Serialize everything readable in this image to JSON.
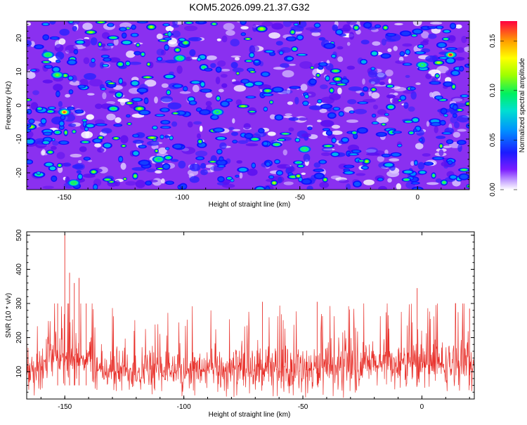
{
  "title": "KOM5.2026.099.21.37.G32",
  "chart_data": [
    {
      "type": "heatmap",
      "xlabel": "Height of straight line (km)",
      "ylabel": "Frequency (Hz)",
      "xlim": [
        -166,
        22
      ],
      "ylim": [
        -25,
        25
      ],
      "xticks": [
        -150,
        -100,
        -50,
        0
      ],
      "yticks": [
        -20,
        -10,
        0,
        10,
        20
      ],
      "colorbar": {
        "label": "Normalized spectral amplitude",
        "range": [
          0.0,
          0.17
        ],
        "ticks": [
          0.0,
          0.05,
          0.1,
          0.15
        ],
        "tick_labels": [
          "0.00",
          "0.05",
          "0.10",
          "0.15"
        ]
      },
      "hotspots": [
        {
          "x": -150,
          "y": -2,
          "v": 0.16
        },
        {
          "x": 14,
          "y": 15,
          "v": 0.17
        },
        {
          "x": -153,
          "y": 9,
          "v": 0.11
        },
        {
          "x": -157,
          "y": 15,
          "v": 0.09
        },
        {
          "x": -146,
          "y": -23,
          "v": 0.09
        },
        {
          "x": -101,
          "y": 14,
          "v": 0.08
        },
        {
          "x": 2,
          "y": 12,
          "v": 0.08
        },
        {
          "x": -48,
          "y": -13,
          "v": 0.08
        },
        {
          "x": -85,
          "y": -2,
          "v": 0.07
        },
        {
          "x": -110,
          "y": -16,
          "v": 0.07
        }
      ]
    },
    {
      "type": "line",
      "xlabel": "Height of straight line (km)",
      "ylabel": "SNR (10 * v/v)",
      "xlim": [
        -166,
        22
      ],
      "ylim": [
        20,
        510
      ],
      "xticks": [
        -150,
        -100,
        -50,
        0
      ],
      "yticks": [
        100,
        200,
        300,
        400,
        500
      ],
      "color": "#e8302a",
      "baseline_mean": 105,
      "peaks": [
        {
          "x": -150,
          "y": 505
        },
        {
          "x": -148,
          "y": 390
        },
        {
          "x": -144,
          "y": 375
        },
        {
          "x": -146,
          "y": 360
        },
        {
          "x": -153,
          "y": 300
        },
        {
          "x": -141,
          "y": 300
        },
        {
          "x": -2,
          "y": 345
        },
        {
          "x": -44,
          "y": 305
        },
        {
          "x": -67,
          "y": 305
        },
        {
          "x": 20,
          "y": 285
        }
      ]
    }
  ]
}
